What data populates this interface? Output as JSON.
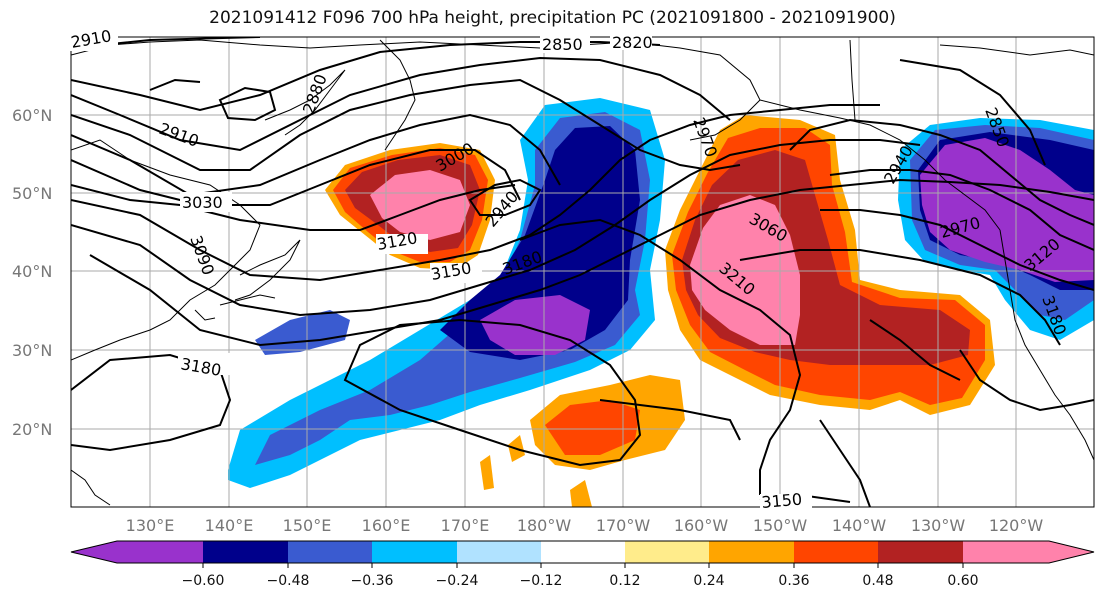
{
  "title": "2021091412 F096 700 hPa height, precipitation PC (2021091800 - 2021091900)",
  "lat_labels": [
    "60°N",
    "50°N",
    "40°N",
    "30°N",
    "20°N"
  ],
  "lon_labels": [
    "130°E",
    "140°E",
    "150°E",
    "160°E",
    "170°E",
    "180°W",
    "170°W",
    "160°W",
    "150°W",
    "140°W",
    "130°W",
    "120°W"
  ],
  "contour_labels": [
    "2910",
    "2850",
    "2820",
    "2880",
    "2910",
    "3000",
    "3030",
    "2940",
    "2970",
    "3090",
    "3120",
    "3150",
    "3180",
    "3060",
    "3210",
    "3180",
    "2850",
    "2940",
    "2970",
    "3120",
    "3180",
    "3150"
  ],
  "colorbar": {
    "colors": [
      "#9932CC",
      "#00008B",
      "#3A5BD0",
      "#00BFFF",
      "#B0E2FF",
      "#FFFFFF",
      "#FFEC8B",
      "#FFA500",
      "#FF4500",
      "#B22222",
      "#FF82AB"
    ],
    "tick_labels": [
      "−0.60",
      "−0.48",
      "−0.36",
      "−0.24",
      "−0.12",
      "0.12",
      "0.24",
      "0.36",
      "0.48",
      "0.60"
    ]
  }
}
